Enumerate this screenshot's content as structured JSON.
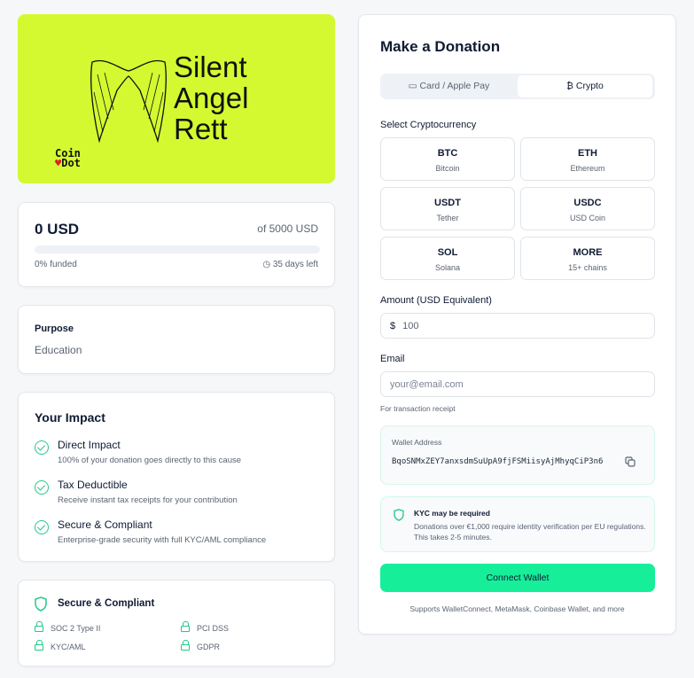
{
  "campaign": {
    "title_lines": [
      "Silent",
      "Angel",
      "Rett"
    ],
    "logo_text": [
      "Coin",
      "Dot"
    ],
    "raised": "0 USD",
    "goal": "of 5000 USD",
    "progress_percent": 0,
    "funded": "0% funded",
    "days_left": "35 days left"
  },
  "purpose": {
    "label": "Purpose",
    "value": "Education"
  },
  "impact": {
    "title": "Your Impact",
    "items": [
      {
        "title": "Direct Impact",
        "desc": "100% of your donation goes directly to this cause"
      },
      {
        "title": "Tax Deductible",
        "desc": "Receive instant tax receipts for your contribution"
      },
      {
        "title": "Secure & Compliant",
        "desc": "Enterprise-grade security with full KYC/AML compliance"
      }
    ]
  },
  "compliance": {
    "title": "Secure & Compliant",
    "badges": [
      "SOC 2 Type II",
      "PCI DSS",
      "KYC/AML",
      "GDPR"
    ]
  },
  "donation": {
    "title": "Make a Donation",
    "tabs": [
      "Card / Apple Pay",
      "Crypto"
    ],
    "active_tab": "Crypto",
    "select_label": "Select Cryptocurrency",
    "cryptos": [
      {
        "code": "BTC",
        "name": "Bitcoin"
      },
      {
        "code": "ETH",
        "name": "Ethereum"
      },
      {
        "code": "USDT",
        "name": "Tether"
      },
      {
        "code": "USDC",
        "name": "USD Coin"
      },
      {
        "code": "SOL",
        "name": "Solana"
      },
      {
        "code": "MORE",
        "name": "15+ chains"
      }
    ],
    "amount_label": "Amount (USD Equivalent)",
    "currency_symbol": "$",
    "amount_value": "100",
    "email_label": "Email",
    "email_placeholder": "your@email.com",
    "email_hint": "For transaction receipt",
    "wallet_label": "Wallet Address",
    "wallet_address": "BqoSNMxZEY7anxsdmSuUpA9fjFSMiisyAjMhyqCiP3n6",
    "kyc_title": "KYC may be required",
    "kyc_text": "Donations over €1,000 require identity verification per EU regulations. This takes 2-5 minutes.",
    "connect_button": "Connect Wallet",
    "supports": "Supports WalletConnect, MetaMask, Coinbase Wallet, and more"
  },
  "colors": {
    "accent": "#16e89a",
    "hero_bg": "#d4f930",
    "text": "#0f1b33"
  }
}
